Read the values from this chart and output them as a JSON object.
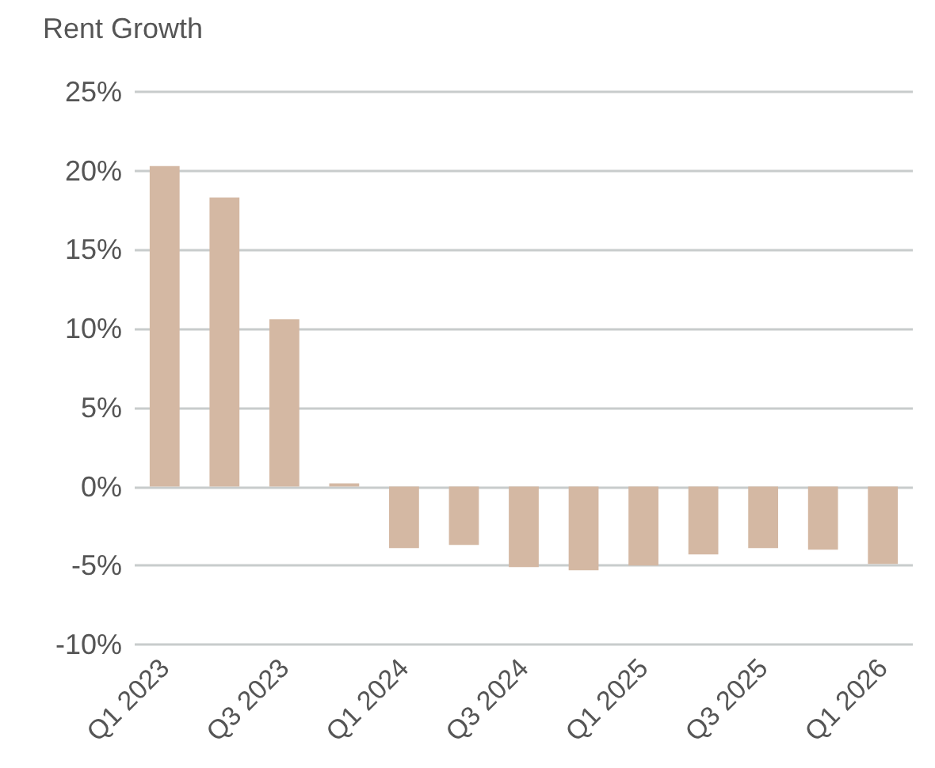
{
  "chart_data": {
    "type": "bar",
    "title": "Rent Growth",
    "categories": [
      "Q1 2023",
      null,
      "Q3 2023",
      null,
      "Q1 2024",
      null,
      "Q3 2024",
      null,
      "Q1 2025",
      null,
      "Q3 2025",
      null,
      "Q1 2026"
    ],
    "values": [
      20.3,
      18.3,
      10.6,
      0.2,
      -3.9,
      -3.7,
      -5.1,
      -5.3,
      -5.0,
      -4.3,
      -3.9,
      -4.0,
      -4.9
    ],
    "color": "#d4b8a3",
    "ylim": [
      -10,
      25
    ],
    "yticks": [
      {
        "value": -10,
        "label": "-10%"
      },
      {
        "value": -5,
        "label": "-5%"
      },
      {
        "value": 0,
        "label": "0%"
      },
      {
        "value": 5,
        "label": "5%"
      },
      {
        "value": 10,
        "label": "10%"
      },
      {
        "value": 15,
        "label": "15%"
      },
      {
        "value": 20,
        "label": "20%"
      },
      {
        "value": 25,
        "label": "25%"
      }
    ],
    "grid": "y"
  }
}
